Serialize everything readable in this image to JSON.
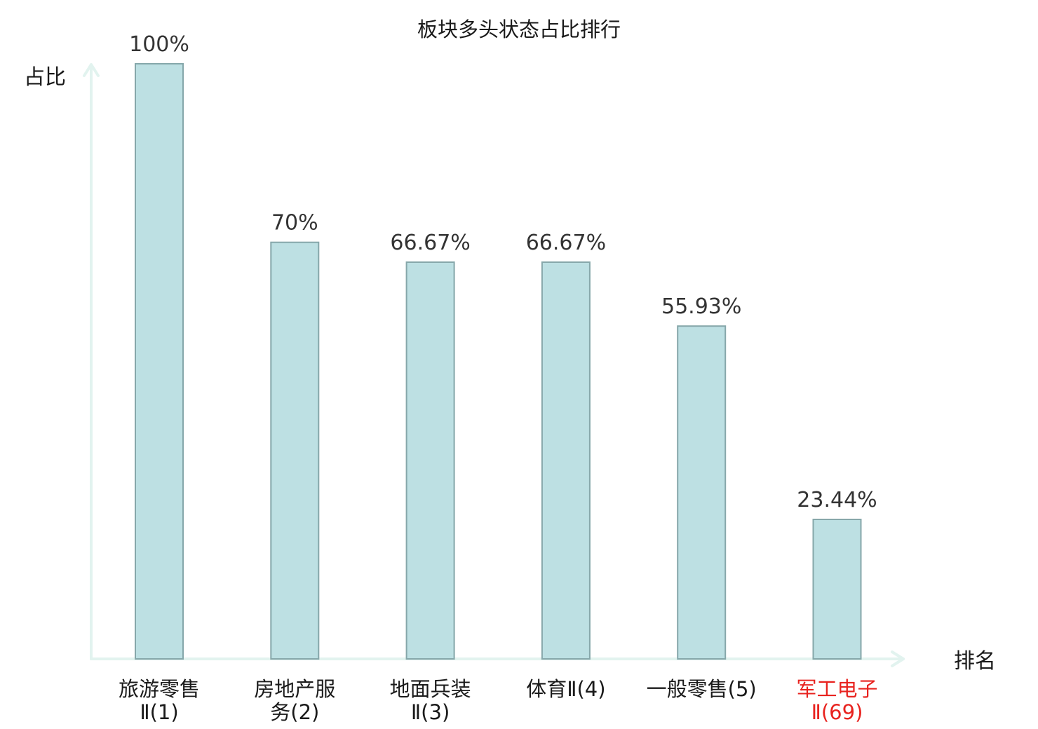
{
  "chart_data": {
    "type": "bar",
    "title": "板块多头状态占比排行",
    "xlabel": "排名",
    "ylabel": "占比",
    "ylim": [
      0,
      100
    ],
    "grid": false,
    "categories": [
      {
        "lines": [
          "旅游零售",
          "Ⅱ(1)"
        ],
        "highlight": false
      },
      {
        "lines": [
          "房地产服",
          "务(2)"
        ],
        "highlight": false
      },
      {
        "lines": [
          "地面兵装",
          "Ⅱ(3)"
        ],
        "highlight": false
      },
      {
        "lines": [
          "体育Ⅱ(4)"
        ],
        "highlight": false
      },
      {
        "lines": [
          "一般零售(5)"
        ],
        "highlight": false
      },
      {
        "lines": [
          "军工电子",
          "Ⅱ(69)"
        ],
        "highlight": true
      }
    ],
    "values": [
      100,
      70,
      66.67,
      66.67,
      55.93,
      23.44
    ],
    "value_labels": [
      "100%",
      "70%",
      "66.67%",
      "66.67%",
      "55.93%",
      "23.44%"
    ],
    "colors": {
      "bar_fill": "#bde0e3",
      "bar_stroke": "#86a7aa",
      "axis": "#e2f3ef",
      "text": "#1a1a1a",
      "highlight_text": "#e8231f"
    }
  }
}
